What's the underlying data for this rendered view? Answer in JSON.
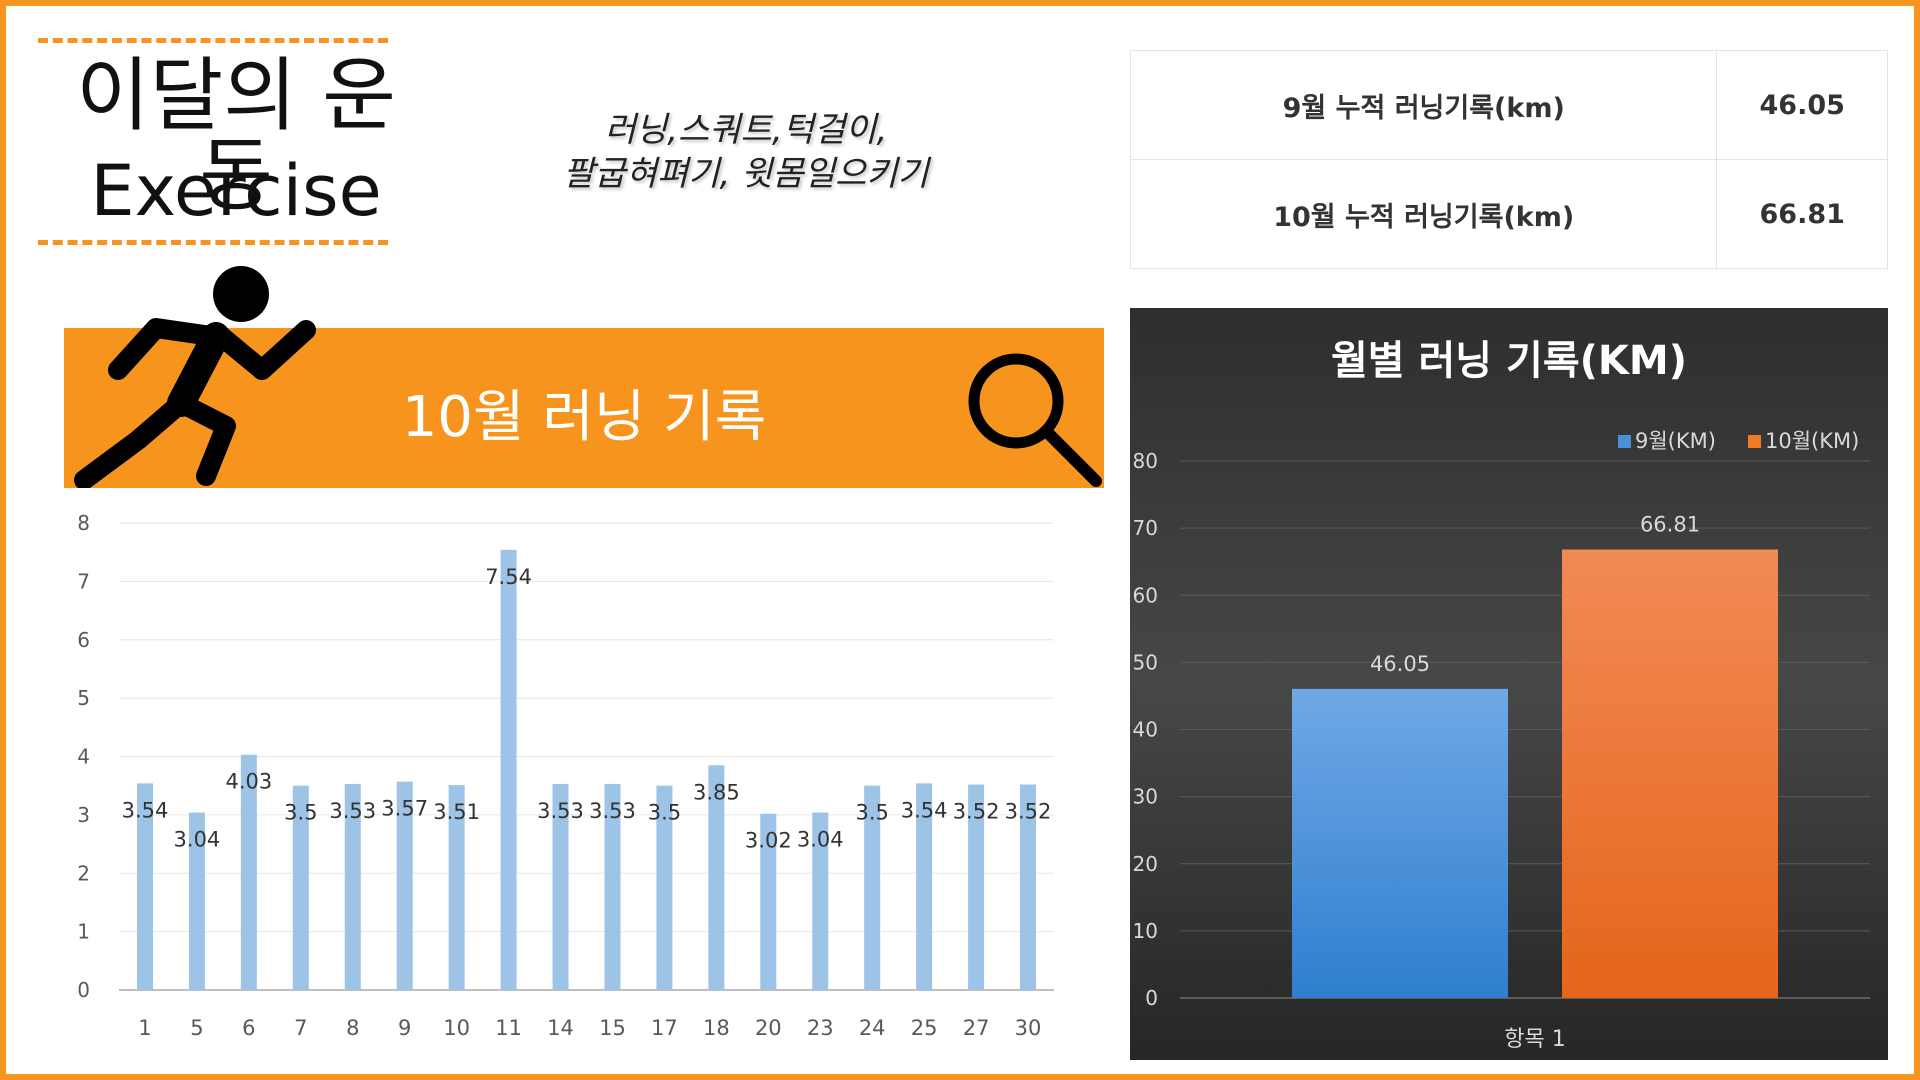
{
  "header": {
    "title_ko": "이달의 운동",
    "title_en": "Exercise",
    "exercise_line1": "러닝,스쿼트,턱걸이,",
    "exercise_line2": "팔굽혀펴기, 윗몸일으키기"
  },
  "banner": {
    "title": "10월 러닝 기록",
    "runner_icon": "running-person-icon",
    "search_icon": "search-icon"
  },
  "summary_table": {
    "rows": [
      {
        "label": "9월 누적 러닝기록(km)",
        "value": "46.05"
      },
      {
        "label": "10월 누적 러닝기록(km)",
        "value": "66.81"
      }
    ]
  },
  "colors": {
    "accent": "#f7941d",
    "bar_blue": "#9dc3e6",
    "dark_bg": "#333333",
    "series_sep": "#4a90d9",
    "series_oct": "#f07c2a"
  },
  "chart_data": [
    {
      "type": "bar",
      "title": "",
      "xlabel": "",
      "ylabel": "",
      "categories": [
        "1",
        "5",
        "6",
        "7",
        "8",
        "9",
        "10",
        "11",
        "14",
        "15",
        "17",
        "18",
        "20",
        "23",
        "24",
        "25",
        "27",
        "30"
      ],
      "values": [
        3.54,
        3.04,
        4.03,
        3.5,
        3.53,
        3.57,
        3.51,
        7.54,
        3.53,
        3.53,
        3.5,
        3.85,
        3.02,
        3.04,
        3.5,
        3.54,
        3.52,
        3.52
      ],
      "yticks": [
        "0",
        "1",
        "2",
        "3",
        "4",
        "5",
        "6",
        "7",
        "8"
      ],
      "ylim": [
        0,
        8
      ],
      "grid": true,
      "legend": "none",
      "data_labels": true
    },
    {
      "type": "bar",
      "title": "월별 러닝 기록(KM)",
      "xlabel": "",
      "ylabel": "",
      "categories": [
        "항목 1"
      ],
      "series": [
        {
          "name": "9월(KM)",
          "values": [
            46.05
          ],
          "labels": [
            "46.05"
          ]
        },
        {
          "name": "10월(KM)",
          "values": [
            66.81
          ],
          "labels": [
            "66.81"
          ]
        }
      ],
      "yticks": [
        "0",
        "10",
        "20",
        "30",
        "40",
        "50",
        "60",
        "70",
        "80"
      ],
      "ylim": [
        0,
        80
      ],
      "grid": true,
      "legend": "top-right",
      "data_labels": true
    }
  ]
}
